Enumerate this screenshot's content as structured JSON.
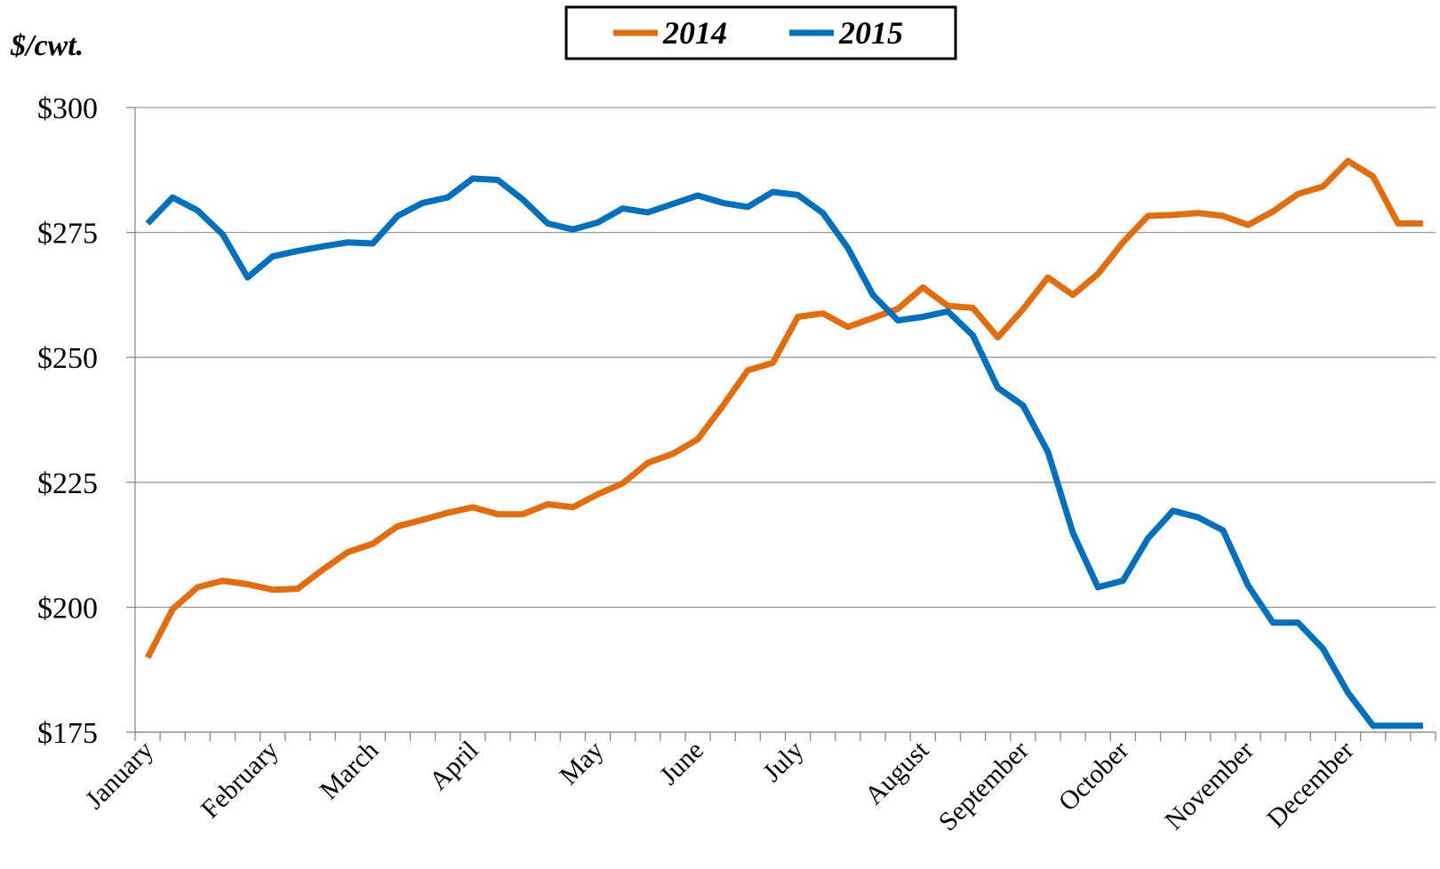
{
  "chart_data": {
    "type": "line",
    "y_label": "$/cwt.",
    "categories": [
      "January",
      null,
      null,
      null,
      null,
      "February",
      null,
      null,
      null,
      "March",
      null,
      null,
      null,
      "April",
      null,
      null,
      null,
      null,
      "May",
      null,
      null,
      null,
      "June",
      null,
      null,
      null,
      "July",
      null,
      null,
      null,
      null,
      "August",
      null,
      null,
      null,
      "September",
      null,
      null,
      null,
      "October",
      null,
      null,
      null,
      null,
      "November",
      null,
      null,
      null,
      "December",
      null,
      null,
      null
    ],
    "series": [
      {
        "name": "2014",
        "color": "#e46c0a",
        "values": [
          189.9,
          199.6,
          204.0,
          205.3,
          204.6,
          203.5,
          203.7,
          207.5,
          211.0,
          212.7,
          216.2,
          217.5,
          218.9,
          220.0,
          218.6,
          218.6,
          220.6,
          220.0,
          222.6,
          224.8,
          228.9,
          230.7,
          233.6,
          240.3,
          247.4,
          248.9,
          258.1,
          258.8,
          256.1,
          257.9,
          259.7,
          264.0,
          260.3,
          259.9,
          254.0,
          259.6,
          266.0,
          262.5,
          266.7,
          273.0,
          278.3,
          278.5,
          278.9,
          278.3,
          276.5,
          279.2,
          282.7,
          284.2,
          289.3,
          286.2,
          276.8,
          276.8
        ]
      },
      {
        "name": "2015",
        "color": "#0070c0",
        "values": [
          276.8,
          282.0,
          279.4,
          274.6,
          266.0,
          270.2,
          271.3,
          272.2,
          273.0,
          272.8,
          278.3,
          280.9,
          282.0,
          285.8,
          285.5,
          281.6,
          276.8,
          275.6,
          277.0,
          279.8,
          279.0,
          280.7,
          282.4,
          280.9,
          280.1,
          283.1,
          282.5,
          278.9,
          271.9,
          262.5,
          257.4,
          258.1,
          259.2,
          254.4,
          243.9,
          240.4,
          231.1,
          214.9,
          204.0,
          205.3,
          213.8,
          219.3,
          218.0,
          215.4,
          204.4,
          196.9,
          196.9,
          191.7,
          182.9,
          176.3,
          176.3,
          176.3
        ]
      }
    ],
    "ylim": [
      175,
      300
    ],
    "yticks": [
      {
        "value": 175,
        "label": "$175"
      },
      {
        "value": 200,
        "label": "$200"
      },
      {
        "value": 225,
        "label": "$225"
      },
      {
        "value": 250,
        "label": "$250"
      },
      {
        "value": 275,
        "label": "$275"
      },
      {
        "value": 300,
        "label": "$300"
      }
    ],
    "grid": true,
    "legend": "top"
  }
}
